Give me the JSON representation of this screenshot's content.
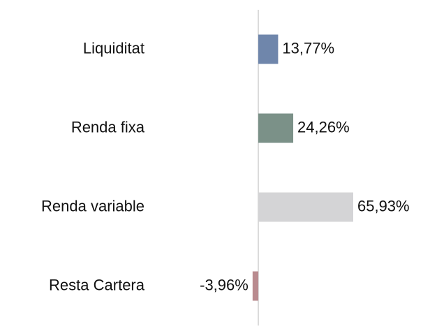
{
  "chart_data": {
    "type": "hbar",
    "categories": [
      "Liquiditat",
      "Renda fixa",
      "Renda variable",
      "Resta Cartera"
    ],
    "values": [
      13.77,
      24.26,
      65.93,
      -3.96
    ],
    "value_labels": [
      "13,77%",
      "24,26%",
      "65,93%",
      "-3,96%"
    ],
    "colors": [
      "#6f86ab",
      "#7b9188",
      "#d4d4d6",
      "#b98b8f"
    ],
    "xlim": [
      -10,
      80
    ]
  }
}
